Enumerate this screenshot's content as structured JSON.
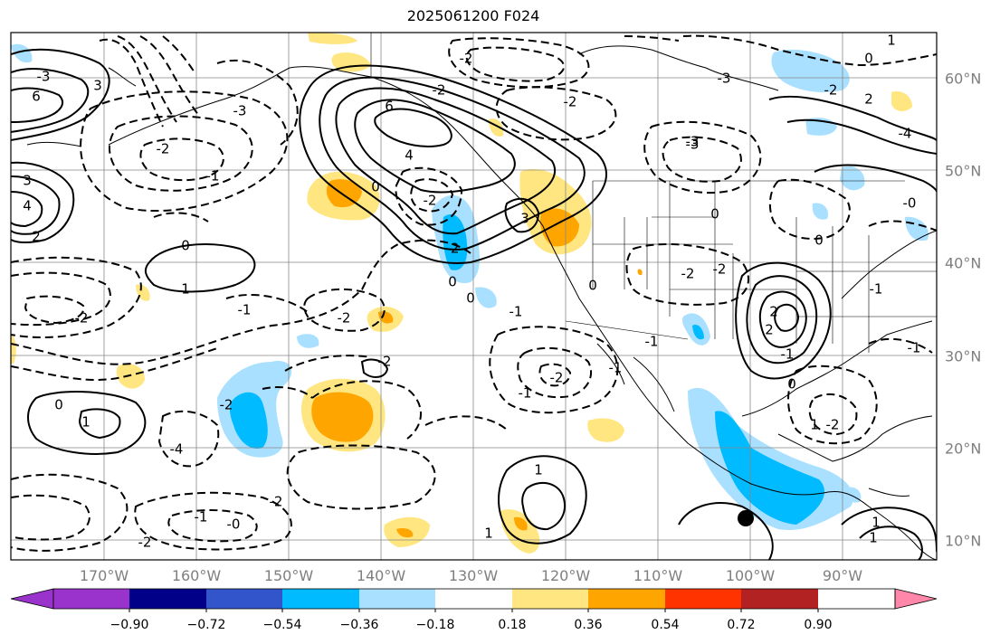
{
  "title": "2025061200 F024",
  "lon_labels": [
    "170°W",
    "160°W",
    "150°W",
    "140°W",
    "130°W",
    "120°W",
    "110°W",
    "100°W",
    "90°W"
  ],
  "lat_labels": [
    "60°N",
    "50°N",
    "40°N",
    "30°N",
    "20°N",
    "10°N"
  ],
  "colorbar": {
    "tick_labels": [
      "−0.90",
      "−0.72",
      "−0.54",
      "−0.36",
      "−0.18",
      "0.18",
      "0.36",
      "0.54",
      "0.72",
      "0.90"
    ],
    "colors": [
      "#9933cc",
      "#000088",
      "#3355cc",
      "#00bbff",
      "#aae0ff",
      "#ffffff",
      "#ffe680",
      "#ffa500",
      "#ff3300",
      "#b22222",
      "#ff88aa"
    ]
  },
  "contour_labels": [
    "6",
    "6",
    "3",
    "3",
    "4",
    "4",
    "2",
    "0",
    "0",
    "0",
    "0",
    "0",
    "1",
    "1",
    "1",
    "1",
    "1",
    "-2",
    "-2",
    "-2",
    "-2",
    "-2",
    "-2",
    "-2",
    "-2",
    "-2",
    "-2",
    "-2",
    "-2",
    "-2",
    "-1",
    "-1",
    "-1",
    "-1",
    "-1",
    "-1",
    "-1",
    "-3",
    "-3",
    "-3",
    "-3",
    "-4",
    "-4",
    "-2",
    "-1",
    "-2",
    "-1",
    "2",
    "2",
    "3",
    "-2",
    "0",
    "0",
    "0",
    "0",
    "0",
    "-0",
    "-0",
    "1",
    "1",
    "2",
    "-3",
    "1",
    "-1",
    "-2"
  ],
  "marker": "storm-center-dot"
}
